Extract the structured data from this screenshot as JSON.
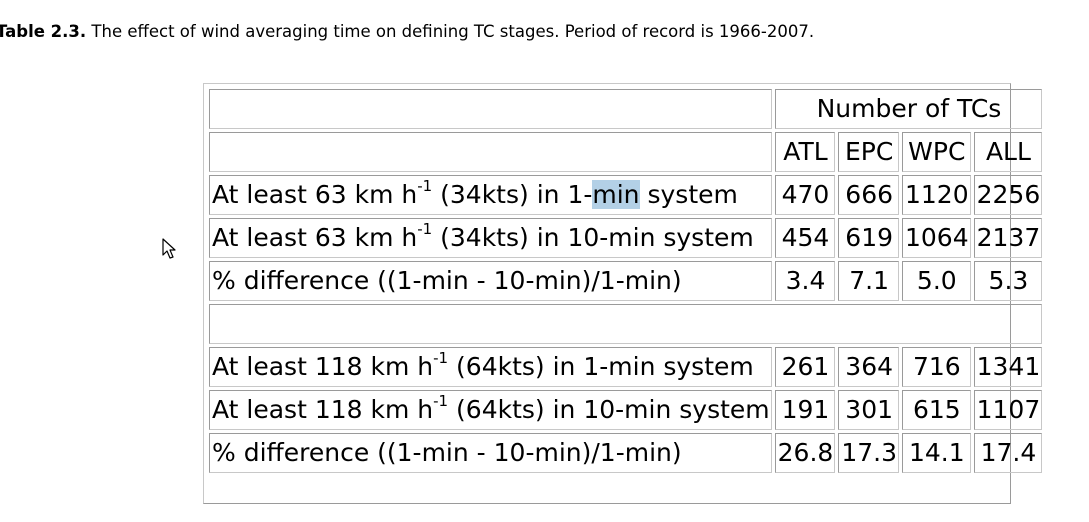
{
  "caption": {
    "label": "Table 2.3.",
    "text": " The effect of wind averaging time on defining TC stages. Period of record is 1966-2007."
  },
  "table": {
    "group_header": "Number of TCs",
    "columns": [
      "ATL",
      "EPC",
      "WPC",
      "ALL"
    ],
    "rows_34kt": [
      {
        "pre": "At least 63 km h",
        "sup": "-1",
        "post_a": " (34kts) in 1-",
        "hl": "min",
        "post_b": " system",
        "values": [
          "470",
          "666",
          "1120",
          "2256"
        ]
      },
      {
        "pre": "At least 63 km h",
        "sup": "-1",
        "post": " (34kts) in 10-min system",
        "values": [
          "454",
          "619",
          "1064",
          "2137"
        ]
      },
      {
        "text": "% difference ((1-min - 10-min)/1-min)",
        "values": [
          "3.4",
          "7.1",
          "5.0",
          "5.3"
        ]
      }
    ],
    "rows_64kt": [
      {
        "pre": "At least 118 km h",
        "sup": "-1",
        "post": " (64kts) in 1-min system",
        "values": [
          "261",
          "364",
          "716",
          "1341"
        ]
      },
      {
        "pre": "At least 118 km h",
        "sup": "-1",
        "post": " (64kts) in 10-min system",
        "values": [
          "191",
          "301",
          "615",
          "1107"
        ]
      },
      {
        "text": "% difference ((1-min - 10-min)/1-min)",
        "values": [
          "26.8",
          "17.3",
          "14.1",
          "17.4"
        ]
      }
    ]
  },
  "cursor": {
    "icon": "arrow-pointer-icon"
  }
}
